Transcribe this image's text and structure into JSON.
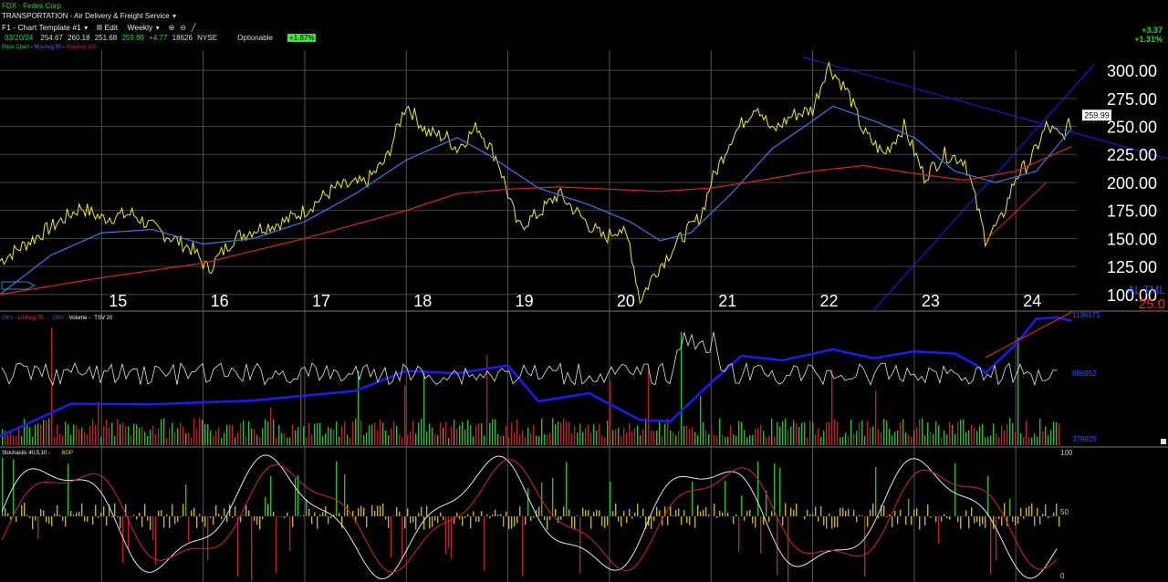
{
  "header": {
    "symbol_line": "FDX - Fedex Corp",
    "sector_line": "TRANSPORTATION - Air Delivery & Freight Service",
    "template": "F1 - Chart Template #1",
    "edit_label": "Edit",
    "period": "Weekly",
    "date": "03/20/24",
    "open": "254.67",
    "high": "260.18",
    "low": "251.68",
    "close": "259.99",
    "change": "+4.77",
    "volume": "18626",
    "exchange": "NYSE",
    "optionable": "Optionable",
    "pct_badge": "+1.87%",
    "right_change": "+3.37",
    "right_pct": "+1.31%",
    "legend": {
      "price": "Price Chart",
      "ma50": "MovAvg 50",
      "ma200": "MovAvg 200"
    }
  },
  "colors": {
    "price": "#f2f200",
    "ma50": "#2e7df0",
    "ma200": "#e02020",
    "obv": "#1a1aff",
    "up": "#22c022",
    "down": "#c02020",
    "tsv": "#e8e8e8",
    "trend": "#1a1aff",
    "bop_up": "#22c022",
    "bop_down": "#c02020",
    "bop_neutral": "#c8b400",
    "badge": "#33ee33"
  },
  "chart_data": [
    {
      "type": "line",
      "panel": "price",
      "x_ticks": [
        "15",
        "16",
        "17",
        "18",
        "19",
        "20",
        "21",
        "22",
        "23",
        "24"
      ],
      "y_ticks": [
        "300.00",
        "275.00",
        "250.00",
        "225.00",
        "200.00",
        "175.00",
        "150.00",
        "125.00",
        "100.00"
      ],
      "ylim": [
        86,
        318
      ],
      "xlim": [
        2014.0,
        2024.6
      ],
      "last_price_label": "259.99",
      "corner_label": "AL TML",
      "corner_value": "25.0",
      "series": [
        {
          "name": "Price Chart",
          "points": [
            [
              2014.0,
              130
            ],
            [
              2014.5,
              160
            ],
            [
              2014.8,
              178
            ],
            [
              2015.0,
              168
            ],
            [
              2015.3,
              172
            ],
            [
              2015.5,
              160
            ],
            [
              2015.7,
              150
            ],
            [
              2015.9,
              140
            ],
            [
              2016.05,
              122
            ],
            [
              2016.3,
              150
            ],
            [
              2016.5,
              158
            ],
            [
              2016.8,
              165
            ],
            [
              2017.0,
              175
            ],
            [
              2017.3,
              195
            ],
            [
              2017.6,
              200
            ],
            [
              2017.8,
              220
            ],
            [
              2018.0,
              270
            ],
            [
              2018.2,
              245
            ],
            [
              2018.4,
              240
            ],
            [
              2018.5,
              230
            ],
            [
              2018.7,
              250
            ],
            [
              2018.9,
              220
            ],
            [
              2019.0,
              190
            ],
            [
              2019.1,
              160
            ],
            [
              2019.3,
              172
            ],
            [
              2019.5,
              190
            ],
            [
              2019.8,
              162
            ],
            [
              2019.95,
              150
            ],
            [
              2020.1,
              160
            ],
            [
              2020.2,
              145
            ],
            [
              2020.3,
              95
            ],
            [
              2020.45,
              120
            ],
            [
              2020.7,
              150
            ],
            [
              2020.9,
              170
            ],
            [
              2021.0,
              200
            ],
            [
              2021.2,
              240
            ],
            [
              2021.45,
              270
            ],
            [
              2021.6,
              245
            ],
            [
              2021.8,
              260
            ],
            [
              2022.0,
              265
            ],
            [
              2022.15,
              305
            ],
            [
              2022.35,
              280
            ],
            [
              2022.5,
              245
            ],
            [
              2022.7,
              225
            ],
            [
              2022.9,
              250
            ],
            [
              2023.1,
              205
            ],
            [
              2023.3,
              225
            ],
            [
              2023.5,
              220
            ],
            [
              2023.7,
              150
            ],
            [
              2023.85,
              165
            ],
            [
              2024.0,
              205
            ],
            [
              2024.15,
              220
            ],
            [
              2024.3,
              250
            ],
            [
              2024.45,
              240
            ],
            [
              2024.55,
              255
            ]
          ]
        },
        {
          "name": "MovAvg 50",
          "points": [
            [
              2014.0,
              100
            ],
            [
              2014.5,
              135
            ],
            [
              2015.0,
              155
            ],
            [
              2015.5,
              158
            ],
            [
              2016.0,
              145
            ],
            [
              2016.5,
              150
            ],
            [
              2017.0,
              165
            ],
            [
              2017.5,
              190
            ],
            [
              2018.0,
              220
            ],
            [
              2018.5,
              240
            ],
            [
              2018.8,
              225
            ],
            [
              2019.3,
              195
            ],
            [
              2019.8,
              180
            ],
            [
              2020.2,
              165
            ],
            [
              2020.5,
              148
            ],
            [
              2020.8,
              155
            ],
            [
              2021.2,
              190
            ],
            [
              2021.6,
              230
            ],
            [
              2022.0,
              255
            ],
            [
              2022.2,
              268
            ],
            [
              2022.6,
              255
            ],
            [
              2023.0,
              240
            ],
            [
              2023.4,
              210
            ],
            [
              2023.8,
              200
            ],
            [
              2024.2,
              210
            ],
            [
              2024.55,
              248
            ]
          ]
        },
        {
          "name": "MovAvg 200",
          "points": [
            [
              2014.0,
              100
            ],
            [
              2015.0,
              115
            ],
            [
              2016.0,
              128
            ],
            [
              2017.0,
              150
            ],
            [
              2018.0,
              175
            ],
            [
              2018.5,
              190
            ],
            [
              2019.0,
              194
            ],
            [
              2019.5,
              196
            ],
            [
              2020.0,
              194
            ],
            [
              2020.5,
              192
            ],
            [
              2021.0,
              195
            ],
            [
              2021.5,
              202
            ],
            [
              2022.0,
              210
            ],
            [
              2022.5,
              215
            ],
            [
              2023.0,
              208
            ],
            [
              2023.5,
              202
            ],
            [
              2024.0,
              210
            ],
            [
              2024.55,
              232
            ]
          ]
        }
      ]
    },
    {
      "type": "bar",
      "panel": "volume",
      "series_names": [
        "OBV",
        "LinReg 75",
        "OBV",
        "Volume",
        "TSV 20"
      ],
      "y_labels": [
        "1136175",
        "886952",
        "379925"
      ]
    },
    {
      "type": "bar",
      "panel": "oscillator",
      "series_names": [
        "Stochastic 40,5,10",
        "BOP"
      ],
      "y_labels": [
        "100",
        "50",
        "0"
      ]
    }
  ]
}
